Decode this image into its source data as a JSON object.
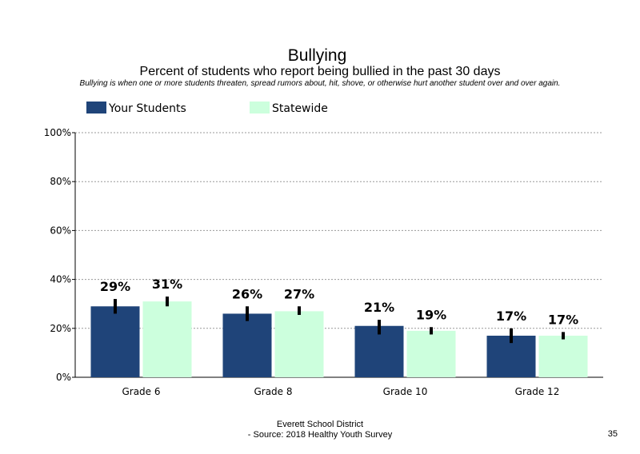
{
  "chart_data": {
    "type": "bar",
    "title": "Bullying",
    "subtitle": "Percent of students who report being bullied in the past 30 days",
    "note": "Bullying is when one or more students threaten, spread rumors about, hit, shove, or otherwise hurt another student over and over again.",
    "categories": [
      "Grade 6",
      "Grade 8",
      "Grade 10",
      "Grade 12"
    ],
    "series": [
      {
        "name": "Your Students",
        "color": "#1f4479",
        "values": [
          29,
          26,
          21,
          17
        ],
        "labels": [
          "29%",
          "26%",
          "21%",
          "17%"
        ],
        "error": [
          [
            26,
            32
          ],
          [
            23,
            29
          ],
          [
            17.5,
            23.5
          ],
          [
            14,
            20
          ]
        ]
      },
      {
        "name": "Statewide",
        "color": "#ccffdd",
        "values": [
          31,
          27,
          19,
          17
        ],
        "labels": [
          "31%",
          "27%",
          "19%",
          "17%"
        ],
        "error": [
          [
            29,
            33
          ],
          [
            25.5,
            29
          ],
          [
            17.5,
            20.5
          ],
          [
            15.5,
            18.5
          ]
        ]
      }
    ],
    "yticks": [
      "0%",
      "20%",
      "40%",
      "60%",
      "80%",
      "100%"
    ],
    "ylim": [
      0,
      100
    ],
    "grid": true,
    "legend_position": "top-left"
  },
  "footer": {
    "line1": "Everett School District",
    "line2": "- Source: 2018 Healthy  Youth Survey",
    "page": "35"
  }
}
